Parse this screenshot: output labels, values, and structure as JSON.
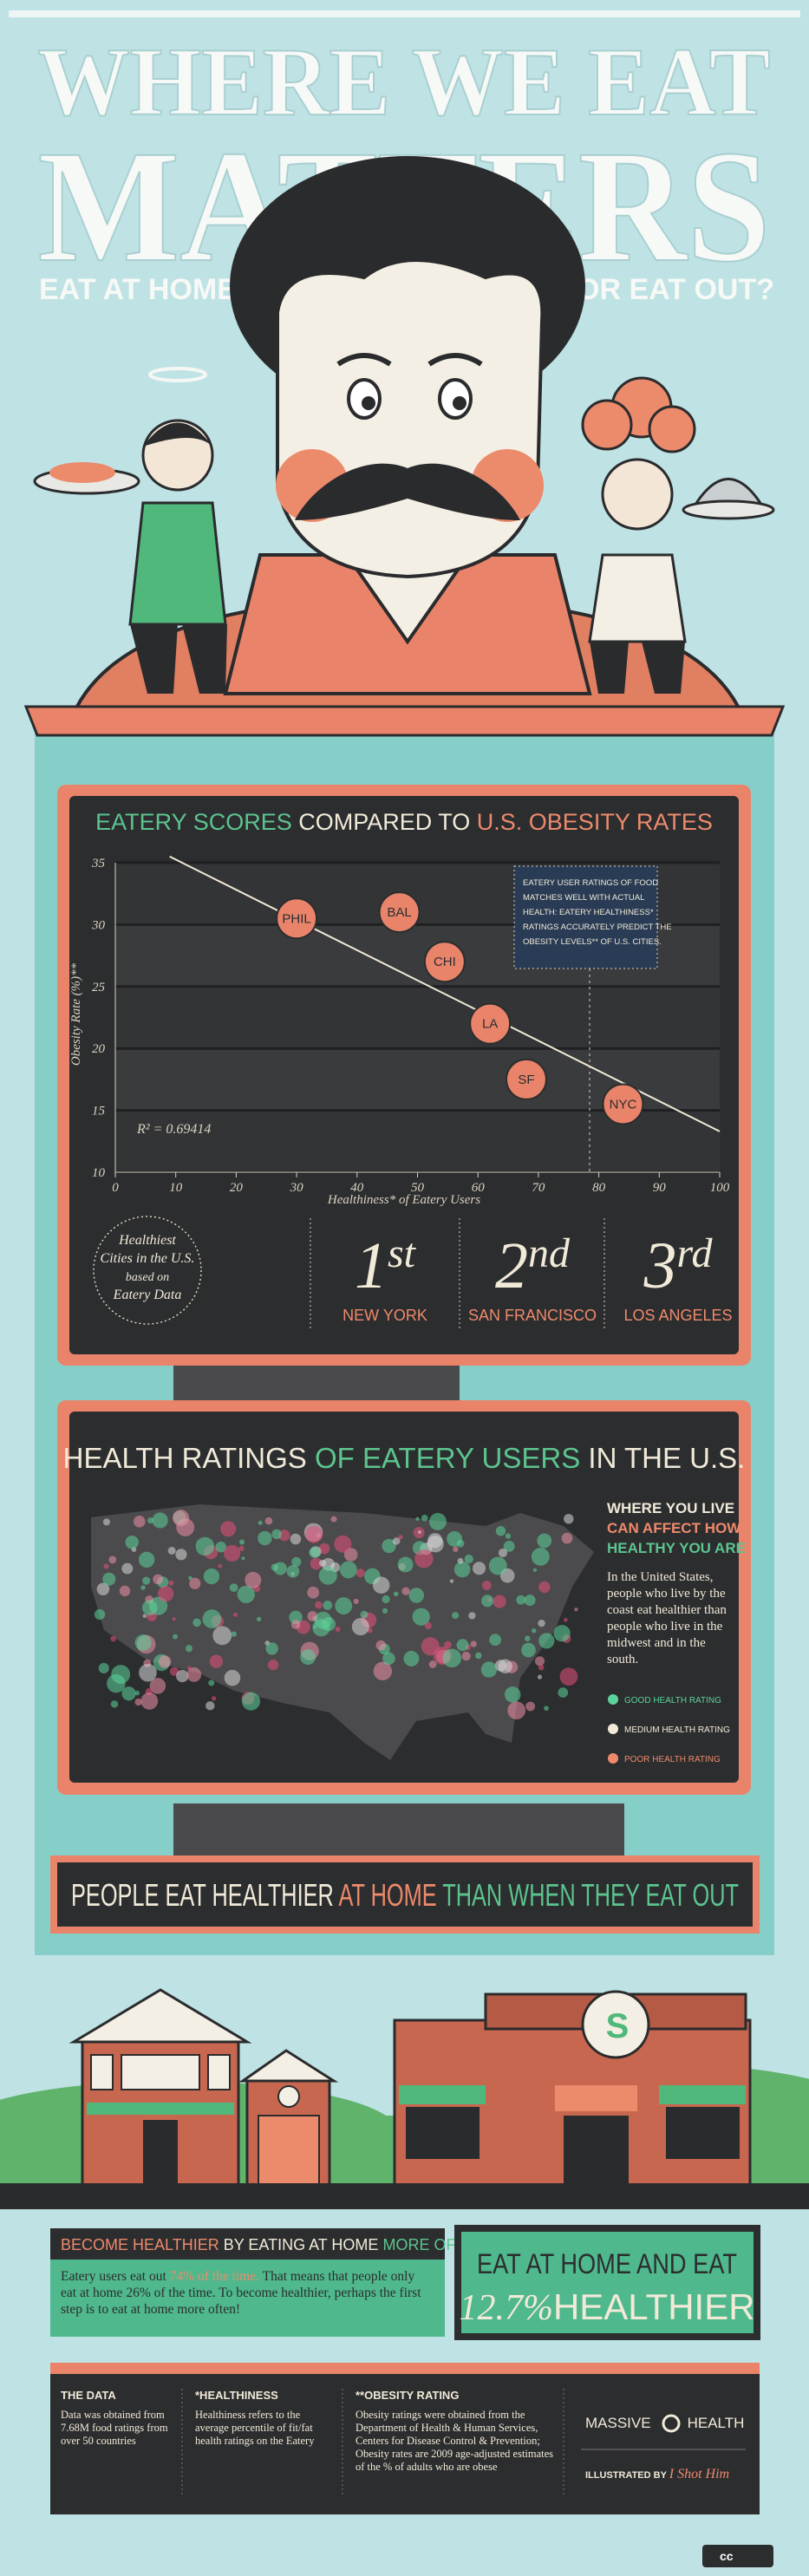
{
  "header": {
    "title_line1": "WHERE WE EAT",
    "title_line2": "MATTERS",
    "left_question": "EAT AT HOME...",
    "right_question": "...OR EAT OUT?"
  },
  "chart_data": {
    "type": "scatter",
    "title_parts": [
      "EATERY SCORES",
      "COMPARED TO",
      "U.S. OBESITY RATES"
    ],
    "x_label": "Healthiness* of Eatery Users",
    "y_label": "Obesity Rate (%)**",
    "point_labels": [
      "PHIL",
      "BAL",
      "CHI",
      "LA",
      "SF",
      "NYC"
    ],
    "x": [
      30,
      47,
      54.5,
      62,
      68,
      84
    ],
    "values": [
      30.5,
      31,
      27,
      22,
      17.5,
      15.5
    ],
    "color": "#e9846a",
    "trendline": {
      "x": [
        9,
        100
      ],
      "values": [
        35.5,
        13.3
      ]
    },
    "annotation": "R² = 0.69414",
    "note_lines": [
      "EATERY USER RATINGS OF FOOD",
      "MATCHES WELL WITH ACTUAL",
      "HEALTH: EATERY HEALTHINESS*",
      "RATINGS ACCURATELY PREDICT THE",
      "OBESITY LEVELS** OF U.S. CITIES."
    ],
    "xlim": [
      0,
      100
    ],
    "xticks": [
      0,
      10,
      20,
      30,
      40,
      50,
      60,
      70,
      80,
      90,
      100
    ],
    "ylim": [
      10,
      35
    ],
    "yticks": [
      10,
      15,
      20,
      25,
      30,
      35
    ],
    "grid": true
  },
  "rankings": {
    "caption_lines": [
      "Healthiest",
      "Cities in the U.S.",
      "based on",
      "Eatery Data"
    ],
    "items": [
      {
        "number": "1",
        "suffix": "st",
        "city": "NEW YORK"
      },
      {
        "number": "2",
        "suffix": "nd",
        "city": "SAN FRANCISCO"
      },
      {
        "number": "3",
        "suffix": "rd",
        "city": "LOS ANGELES"
      }
    ]
  },
  "map": {
    "title_parts": [
      "HEALTH RATINGS",
      "OF EATERY USERS",
      "IN THE U.S."
    ],
    "heading_lines": [
      "WHERE YOU LIVE",
      "CAN AFFECT HOW",
      "HEALTHY YOU ARE"
    ],
    "text": "In the United States, people who live by the coast eat healthier than people who live in the midwest and in the south.",
    "legend": [
      "GOOD HEALTH RATING",
      "MEDIUM HEALTH RATING",
      "POOR HEALTH RATING"
    ]
  },
  "banner": [
    "PEOPLE EAT HEALTHIER",
    "AT HOME",
    "THAN WHEN THEY EAT OUT"
  ],
  "restaurant_sign": "S",
  "callout": {
    "heading_parts": [
      "BECOME HEALTHIER",
      "BY EATING AT HOME",
      "MORE OFTEN"
    ],
    "text_parts": [
      "Eatery users eat out ",
      "74% of the time.",
      " That means that people only eat at home 26% of the time.  To become healthier, perhaps the first step is to eat at home more often!"
    ],
    "big_line1": "EAT AT HOME AND EAT",
    "big_number": "12.7%",
    "big_word": "HEALTHIER"
  },
  "footer": {
    "columns": [
      {
        "heading": "THE DATA",
        "text": "Data was obtained from 7.68M food ratings from over 50 countries"
      },
      {
        "heading": "*HEALTHINESS",
        "text": "Healthiness refers to the average percentile of fit/fat health ratings on the Eatery"
      },
      {
        "heading": "**OBESITY RATING",
        "text": "Obesity ratings were obtained from the Department of Health & Human Services, Centers for Disease Control & Prevention; Obesity rates are 2009 age-adjusted estimates of the % of adults who are obese"
      }
    ],
    "brand_left": "MASSIVE",
    "brand_right": "HEALTH",
    "credit_label": "ILLUSTRATED BY",
    "credit_name": "I Shot Him",
    "license": "cc"
  }
}
